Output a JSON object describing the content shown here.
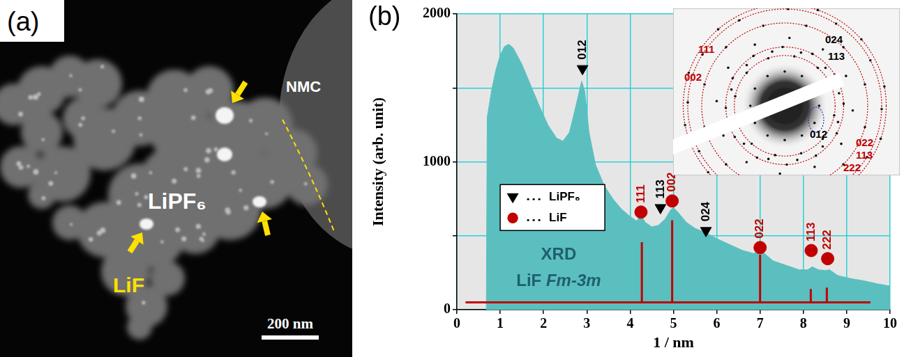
{
  "panels": {
    "a": {
      "label": "(a)",
      "texts": {
        "region": "NMC",
        "matrix": "LiPF₆",
        "particles": "LiF"
      },
      "scale_bar": "200 nm"
    },
    "b": {
      "label": "(b)"
    }
  },
  "chart_data": {
    "type": "area",
    "x_label": "1 / nm",
    "y_label": "Intensity (arb. unit)",
    "xlim": [
      0,
      10
    ],
    "xticks": [
      0,
      1,
      2,
      3,
      4,
      5,
      6,
      7,
      8,
      9,
      10
    ],
    "ylim": [
      0,
      2000
    ],
    "yticks": [
      0,
      1000,
      2000
    ],
    "grid": true,
    "legend": "left",
    "annotations": [
      "XRD",
      "LiF Fm-3m"
    ],
    "series": [
      {
        "type": "area",
        "color": "#5bbfbf",
        "x": [
          0.68,
          0.7,
          0.8,
          0.9,
          1.0,
          1.1,
          1.2,
          1.3,
          1.5,
          1.7,
          1.9,
          2.1,
          2.3,
          2.45,
          2.6,
          2.75,
          2.88,
          2.95,
          3.05,
          3.2,
          3.4,
          3.6,
          3.8,
          4.0,
          4.15,
          4.25,
          4.35,
          4.5,
          4.65,
          4.8,
          4.95,
          5.0,
          5.1,
          5.3,
          5.5,
          5.75,
          6.0,
          6.3,
          6.6,
          6.85,
          7.0,
          7.1,
          7.3,
          7.6,
          7.9,
          8.1,
          8.2,
          8.35,
          8.5,
          8.6,
          8.8,
          9.1,
          9.4,
          9.7,
          10
        ],
        "values": [
          0,
          1300,
          1480,
          1620,
          1720,
          1780,
          1795,
          1770,
          1660,
          1520,
          1380,
          1250,
          1160,
          1140,
          1200,
          1380,
          1545,
          1480,
          1200,
          980,
          840,
          750,
          680,
          630,
          600,
          640,
          590,
          560,
          570,
          610,
          680,
          690,
          660,
          590,
          550,
          520,
          480,
          440,
          400,
          380,
          400,
          380,
          330,
          300,
          270,
          270,
          290,
          270,
          265,
          270,
          230,
          210,
          195,
          175,
          160
        ]
      },
      {
        "type": "stick",
        "color": "#c00000",
        "x": [
          4.27,
          4.97,
          7.0,
          8.17,
          8.54
        ],
        "values": [
          456,
          605,
          372,
          140,
          150
        ],
        "baseline": 50,
        "baseline_x": [
          0.2,
          9.55
        ]
      },
      {
        "name": "LiPF₆",
        "type": "scatter",
        "marker": "triangle-down",
        "color": "#000000",
        "x": [
          2.9,
          4.7,
          5.75
        ],
        "values": [
          1630,
          690,
          535
        ],
        "labels": [
          "012",
          "113",
          "024"
        ]
      },
      {
        "name": "LiF",
        "type": "scatter",
        "marker": "circle",
        "color": "#c00000",
        "x": [
          4.25,
          4.97,
          7.0,
          8.18,
          8.56
        ],
        "values": [
          660,
          735,
          420,
          400,
          345
        ],
        "labels": [
          "111",
          "002",
          "022",
          "113",
          "222"
        ]
      }
    ],
    "inset": {
      "labels": [
        {
          "text": "024",
          "phase": "LiPF₆"
        },
        {
          "text": "113",
          "phase": "LiPF₆"
        },
        {
          "text": "111",
          "phase": "LiF"
        },
        {
          "text": "002",
          "phase": "LiF"
        },
        {
          "text": "012",
          "phase": "LiPF₆"
        },
        {
          "text": "022",
          "phase": "LiF"
        },
        {
          "text": "113",
          "phase": "LiF"
        },
        {
          "text": "222",
          "phase": "LiF"
        }
      ]
    }
  }
}
